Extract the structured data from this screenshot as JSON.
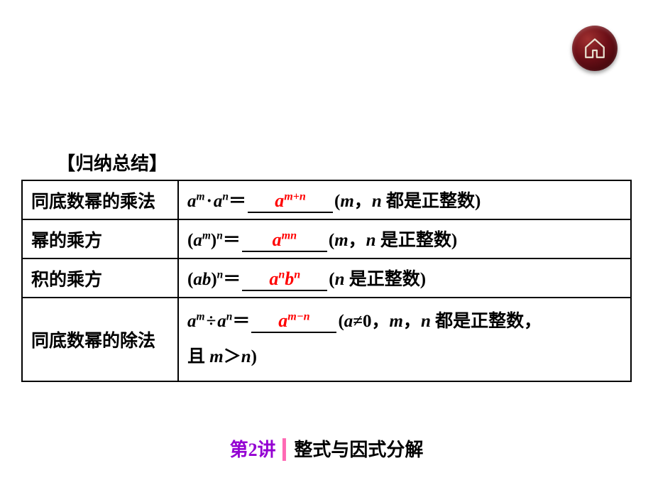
{
  "home_button": {
    "icon_name": "home-icon",
    "ring_color": "#3a0a0f",
    "glow_color": "#a03030"
  },
  "section_title": "【归纳总结】",
  "table": {
    "rows": [
      {
        "label": "同底数幂的乘法",
        "lhs_html": "<span class='mi'>a</span><sup><span class='mi'>m</span></sup><span class='opgap'></span>·<span class='opgap'></span><span class='mi'>a</span><sup><span class='mi'>n</span></sup>＝",
        "answer_html": "<span class='ans'><span class='mi'>a</span><sup><span class='mi'>m</span>+<span class='mi'>n</span></sup></span>",
        "cond_html": "(<span class='mi'>m</span>，<span class='mi'>n</span> 都是正整数)"
      },
      {
        "label": "幂的乘方",
        "lhs_html": "(<span class='mi'>a</span><sup><span class='mi'>m</span></sup>)<sup><span class='mi'>n</span></sup>＝",
        "answer_html": "<span class='ans'><span class='mi'>a</span><sup><span class='mi'>mn</span></sup></span>",
        "cond_html": "(<span class='mi'>m</span>，<span class='mi'>n</span> 是正整数)"
      },
      {
        "label": "积的乘方",
        "lhs_html": "(<span class='mi'>ab</span>)<sup><span class='mi'>n</span></sup>＝",
        "answer_html": "<span class='ans'><span class='mi'>a</span><sup><span class='mi'>n</span></sup><span class='mi'>b</span><sup><span class='mi'>n</span></sup></span>",
        "cond_html": "(<span class='mi'>n</span> 是正整数)"
      },
      {
        "label": "同底数幂的除法",
        "lhs_html": "<span class='mi'>a</span><sup><span class='mi'>m</span></sup><span class='opgap'></span>÷<span class='opgap'></span><span class='mi'>a</span><sup><span class='mi'>n</span></sup>＝",
        "answer_html": "<span class='ans'><span class='mi'>a</span><sup><span class='mi'>m</span>−<span class='mi'>n</span></sup></span>",
        "cond_html": "(<span class='mi'>a</span>≠0，<span class='mi'>m</span>，<span class='mi'>n</span> 都是正整数，",
        "cond2_html": "且 <span class='mi'>m</span>＞<span class='mi'>n</span>)"
      }
    ]
  },
  "footer": {
    "lecture": "第2讲",
    "separator": "┃",
    "title": "整式与因式分解"
  },
  "colors": {
    "text": "#000000",
    "answer": "#ff0000",
    "lecture": "#9400d3",
    "separator": "#ff69b4",
    "background": "#ffffff"
  },
  "typography": {
    "body_fontsize": 25,
    "title_fontsize": 26,
    "footer_fontsize": 26,
    "formula_font": "Times New Roman"
  }
}
